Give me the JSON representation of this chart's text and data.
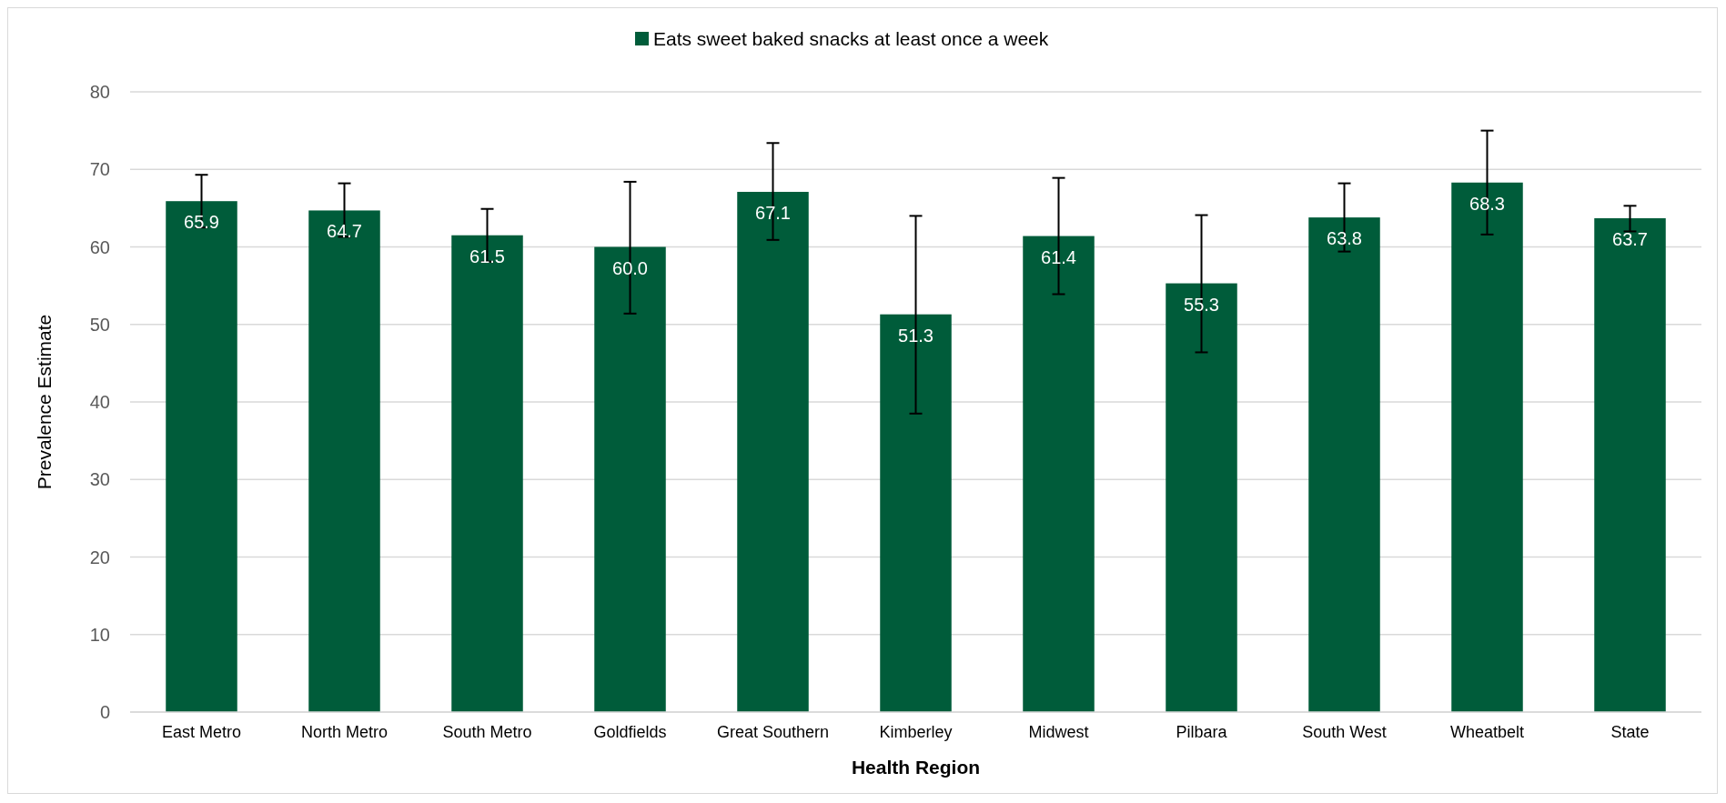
{
  "chart_data": {
    "type": "bar",
    "xlabel": "Health Region",
    "ylabel": "Prevalence Estimate",
    "categories": [
      "East Metro",
      "North Metro",
      "South Metro",
      "Goldfields",
      "Great Southern",
      "Kimberley",
      "Midwest",
      "Pilbara",
      "South West",
      "Wheatbelt",
      "State"
    ],
    "series": [
      {
        "name": "Eats sweet baked snacks at least once a week",
        "color": "#005c3a",
        "values": [
          65.9,
          64.7,
          61.5,
          60.0,
          67.1,
          51.3,
          61.4,
          55.3,
          63.8,
          68.3,
          63.7
        ],
        "value_labels": [
          "65.9",
          "64.7",
          "61.5",
          "60.0",
          "67.1",
          "51.3",
          "61.4",
          "55.3",
          "63.8",
          "68.3",
          "63.7"
        ],
        "errors": [
          [
            62.5,
            69.3
          ],
          [
            61.3,
            68.2
          ],
          [
            58.1,
            64.9
          ],
          [
            51.4,
            68.4
          ],
          [
            60.9,
            73.4
          ],
          [
            38.5,
            64.0
          ],
          [
            53.9,
            68.9
          ],
          [
            46.4,
            64.1
          ],
          [
            59.4,
            68.2
          ],
          [
            61.6,
            75.0
          ],
          [
            62.0,
            65.3
          ]
        ]
      }
    ],
    "ylim": [
      0,
      80
    ],
    "yticks": [
      0,
      10,
      20,
      30,
      40,
      50,
      60,
      70,
      80
    ],
    "grid": "y",
    "legend": "top"
  }
}
